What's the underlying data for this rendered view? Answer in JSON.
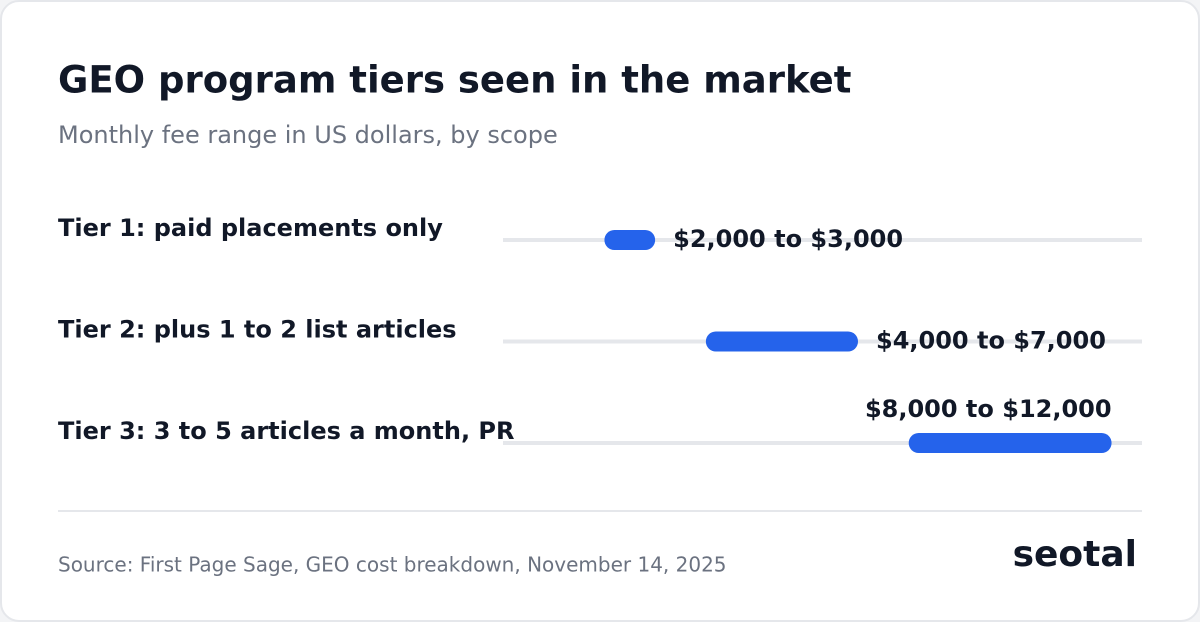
{
  "chart_data": {
    "type": "range",
    "title": "GEO program tiers seen in the market",
    "subtitle": "Monthly fee range in US dollars, by scope",
    "categories": [
      "Tier 1: paid placements only",
      "Tier 2: plus 1 to 2 list articles",
      "Tier 3: 3 to 5 articles a month, PR"
    ],
    "low": [
      2000,
      4000,
      8000
    ],
    "high": [
      3000,
      7000,
      12000
    ],
    "value_labels": [
      "$2,000 to $3,000",
      "$4,000 to $7,000",
      "$8,000 to $12,000"
    ],
    "color": "#2563eb",
    "xlim": [
      0,
      12600
    ]
  },
  "footer": {
    "source": "Source: First Page Sage, GEO cost breakdown, November 14, 2025",
    "logo": "seotal"
  }
}
